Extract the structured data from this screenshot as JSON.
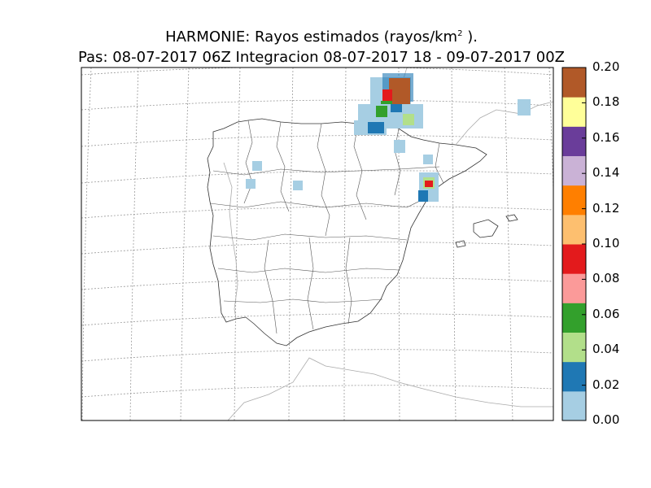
{
  "title": {
    "line1_prefix": "HARMONIE: Rayos estimados  (rayos/km",
    "line1_sup": "2",
    "line1_suffix": " ).",
    "line2": "Pas: 08-07-2017 06Z Integracion 08-07-2017 18 - 09-07-2017 00Z"
  },
  "colorbar": {
    "ticks": [
      "0.00",
      "0.02",
      "0.04",
      "0.06",
      "0.08",
      "0.10",
      "0.12",
      "0.14",
      "0.16",
      "0.18",
      "0.20"
    ],
    "colors": [
      "#a6cee3",
      "#1f78b4",
      "#b2df8a",
      "#33a02c",
      "#fb9a99",
      "#e31a1c",
      "#fdbf6f",
      "#ff7f00",
      "#cab2d6",
      "#6a3d9a",
      "#ffff99",
      "#b15928"
    ]
  }
}
